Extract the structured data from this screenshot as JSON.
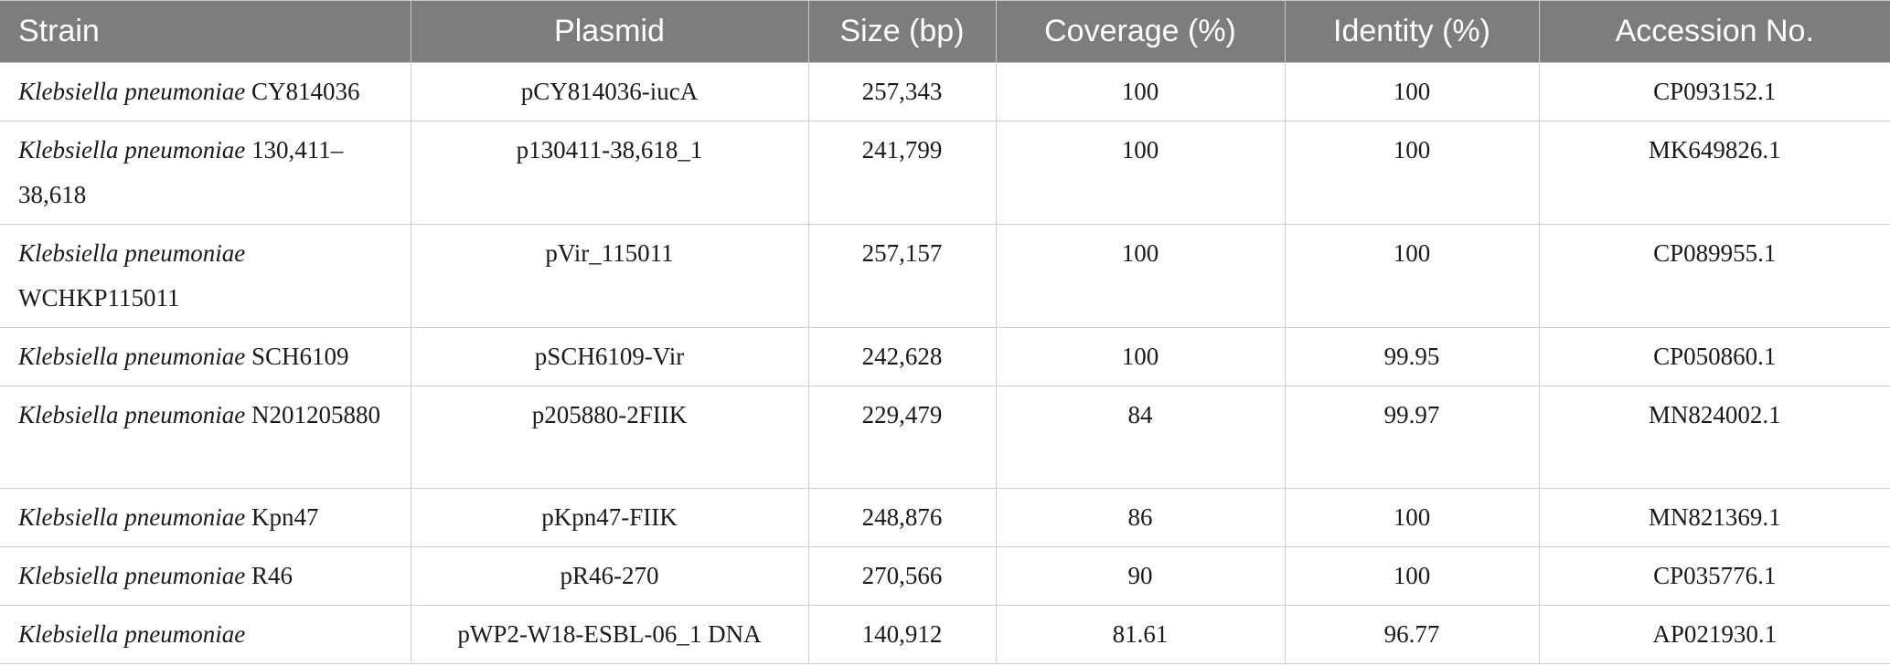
{
  "table": {
    "headers": [
      "Strain",
      "Plasmid",
      "Size (bp)",
      "Coverage (%)",
      "Identity (%)",
      "Accession No."
    ],
    "rows": [
      {
        "species": "Klebsiella pneumoniae",
        "strain_id": " CY814036",
        "plasmid": "pCY814036-iucA",
        "size": "257,343",
        "coverage": "100",
        "identity": "100",
        "accession": "CP093152.1"
      },
      {
        "species": "Klebsiella pneumoniae",
        "strain_id": " 130,411–38,618",
        "plasmid": "p130411-38,618_1",
        "size": "241,799",
        "coverage": "100",
        "identity": "100",
        "accession": "MK649826.1"
      },
      {
        "species": "Klebsiella pneumoniae",
        "strain_id": " WCHKP115011",
        "plasmid": "pVir_115011",
        "size": "257,157",
        "coverage": "100",
        "identity": "100",
        "accession": "CP089955.1"
      },
      {
        "species": "Klebsiella pneumoniae",
        "strain_id": " SCH6109",
        "plasmid": "pSCH6109-Vir",
        "size": "242,628",
        "coverage": "100",
        "identity": "99.95",
        "accession": "CP050860.1"
      },
      {
        "species": "Klebsiella pneumoniae",
        "strain_id": " N201205880",
        "plasmid": "p205880-2FIIK",
        "size": "229,479",
        "coverage": "84",
        "identity": "99.97",
        "accession": "MN824002.1"
      },
      {
        "species": "Klebsiella pneumoniae",
        "strain_id": " Kpn47",
        "plasmid": "pKpn47-FIIK",
        "size": "248,876",
        "coverage": "86",
        "identity": "100",
        "accession": "MN821369.1"
      },
      {
        "species": "Klebsiella pneumoniae",
        "strain_id": " R46",
        "plasmid": "pR46-270",
        "size": "270,566",
        "coverage": "90",
        "identity": "100",
        "accession": "CP035776.1"
      },
      {
        "species": "Klebsiella pneumoniae",
        "strain_id": "",
        "plasmid": "pWP2-W18-ESBL-06_1 DNA",
        "size": "140,912",
        "coverage": "81.61",
        "identity": "96.77",
        "accession": "AP021930.1"
      }
    ]
  }
}
